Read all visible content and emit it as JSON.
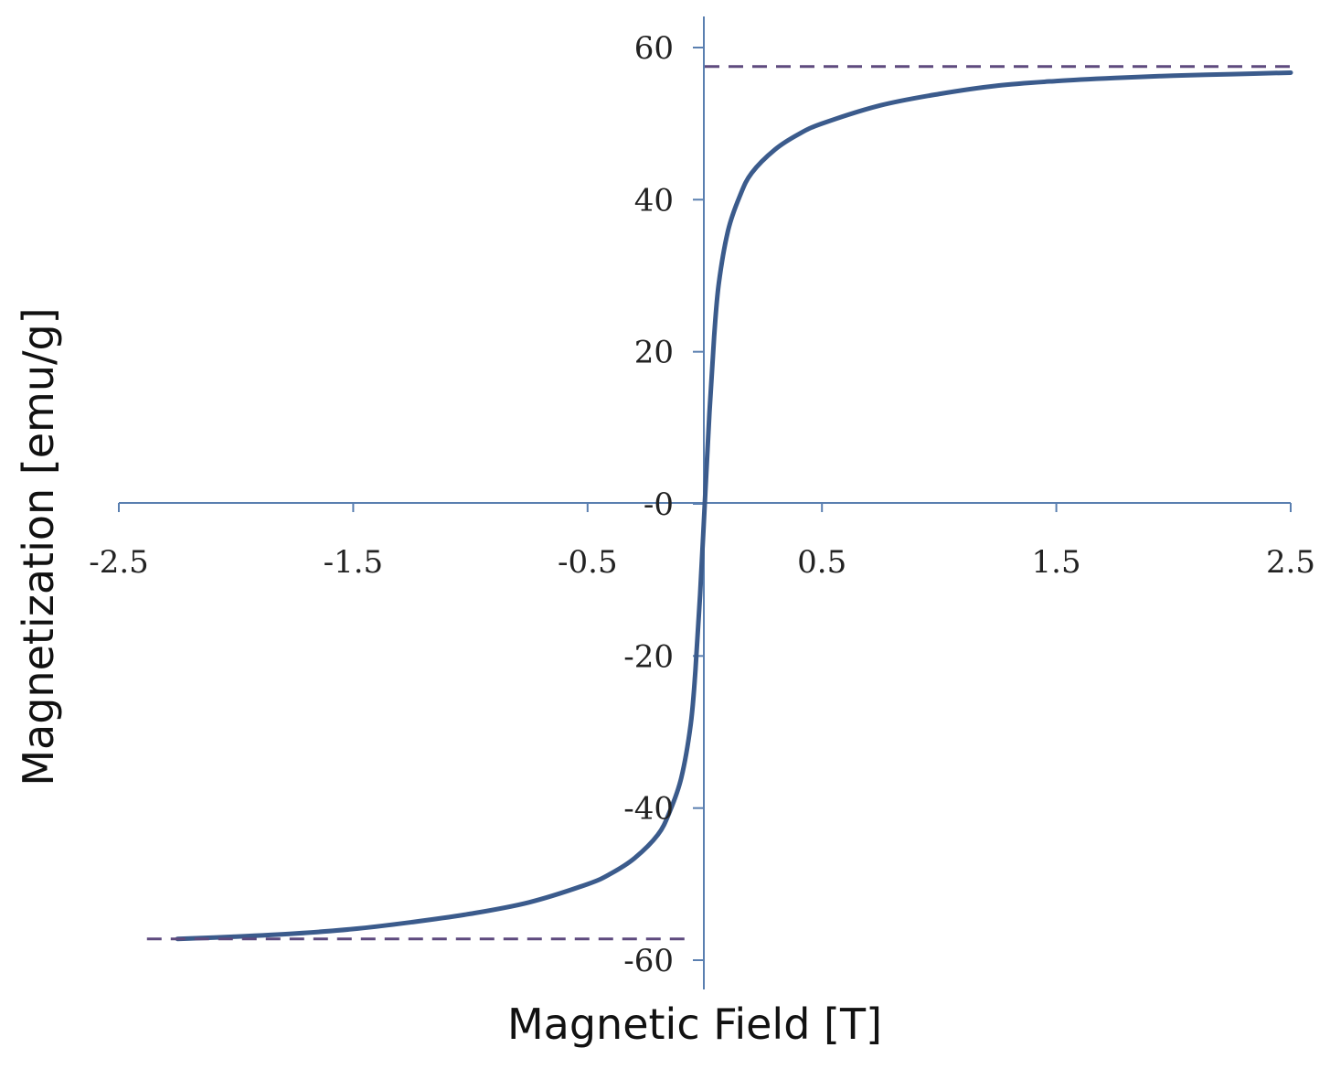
{
  "chart_data": {
    "type": "line",
    "title": "",
    "xlabel": "Magnetic Field [T]",
    "ylabel": "Magnetization [emu/g]",
    "xlim": [
      -2.5,
      2.5
    ],
    "ylim": [
      -60,
      60
    ],
    "x_ticks": [
      -2.5,
      -1.5,
      -0.5,
      0.5,
      1.5,
      2.5
    ],
    "x_tick_labels": [
      "-2.5",
      "-1.5",
      "-0.5",
      "0.5",
      "1.5",
      "2.5"
    ],
    "y_ticks": [
      60,
      40,
      20,
      0,
      -20,
      -40,
      -60
    ],
    "y_tick_labels": [
      "60",
      "40",
      "20",
      "-0",
      "-20",
      "-40",
      "-60"
    ],
    "grid": false,
    "legend": "none",
    "series": [
      {
        "style": "solid",
        "color": "#3b5b8c",
        "x": [
          -2.25,
          -2.0,
          -1.75,
          -1.5,
          -1.25,
          -1.0,
          -0.75,
          -0.5,
          -0.4,
          -0.3,
          -0.2,
          -0.15,
          -0.1,
          -0.06,
          -0.04,
          -0.02,
          0.0,
          0.02,
          0.04,
          0.06,
          0.1,
          0.15,
          0.2,
          0.3,
          0.4,
          0.5,
          0.75,
          1.0,
          1.25,
          1.5,
          1.75,
          2.0,
          2.25,
          2.5
        ],
        "y": [
          -57.2,
          -56.9,
          -56.5,
          -55.9,
          -55.0,
          -53.9,
          -52.4,
          -50.0,
          -48.6,
          -46.6,
          -43.5,
          -40.5,
          -36.0,
          -29.0,
          -22.0,
          -12.0,
          0.0,
          12.0,
          22.0,
          29.0,
          36.0,
          40.5,
          43.5,
          46.6,
          48.6,
          50.0,
          52.4,
          53.9,
          55.0,
          55.6,
          56.0,
          56.3,
          56.5,
          56.7
        ]
      },
      {
        "style": "dashed",
        "color": "#5e4a7e",
        "x": [
          0.0,
          2.5
        ],
        "y": [
          57.5,
          57.5
        ]
      },
      {
        "style": "dashed",
        "color": "#5e4a7e",
        "x": [
          -2.38,
          -0.08
        ],
        "y": [
          -57.2,
          -57.2
        ]
      }
    ],
    "colors": {
      "axis": "#5a7fb0",
      "curve": "#3b5b8c",
      "saturation_lines": "#5e4a7e"
    }
  }
}
